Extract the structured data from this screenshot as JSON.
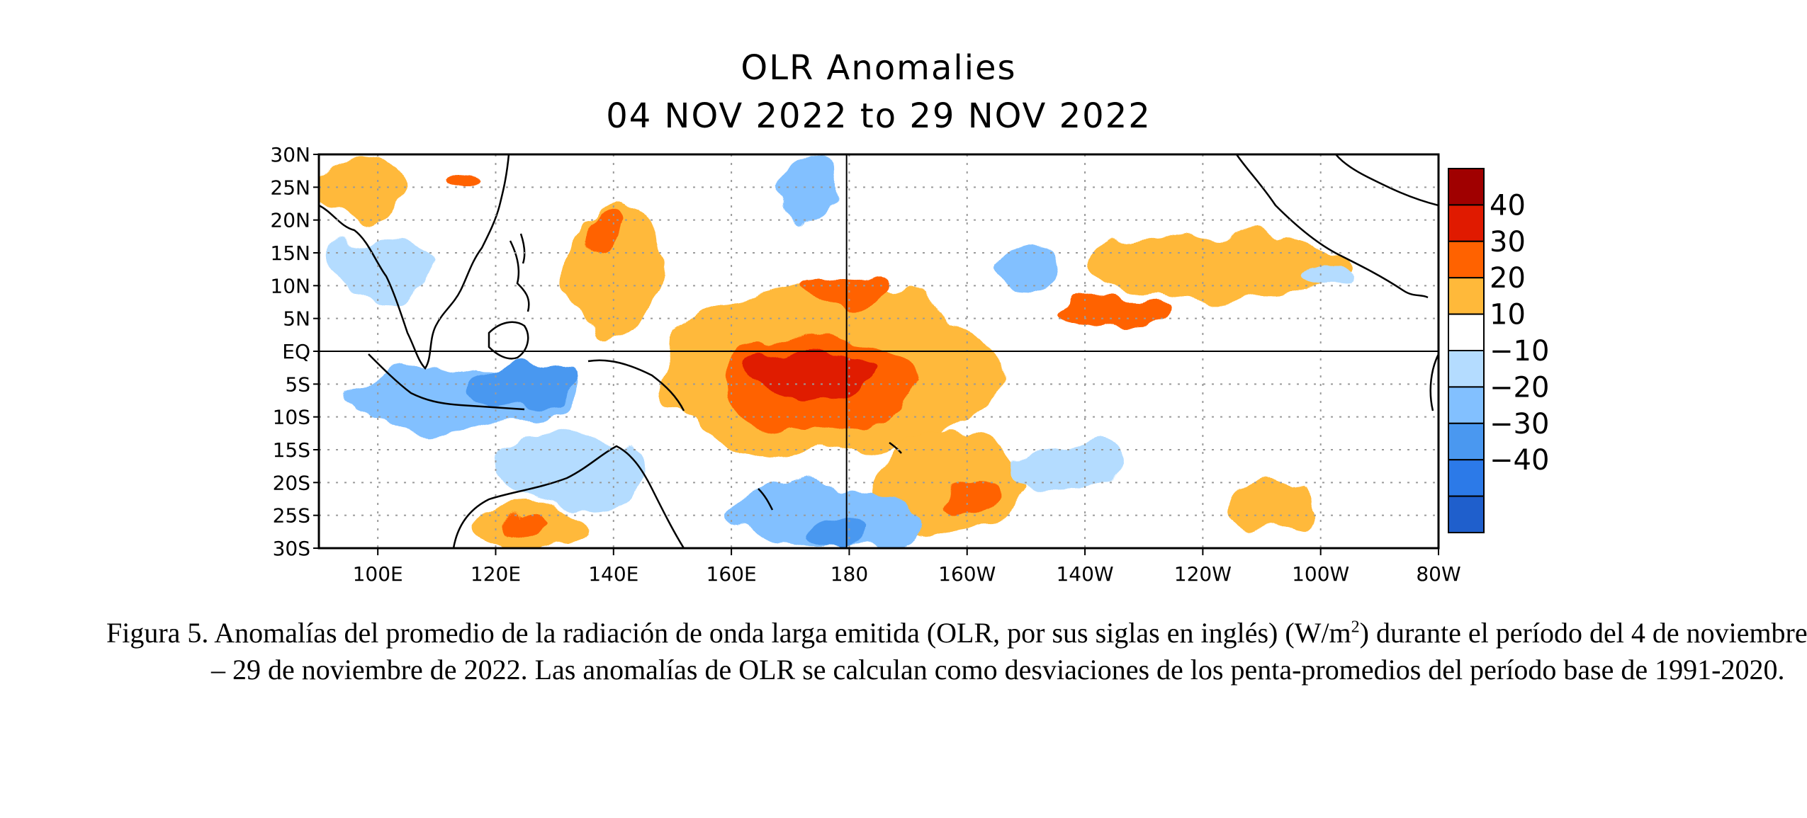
{
  "chart_data": {
    "type": "heatmap",
    "title": "OLR Anomalies",
    "subtitle": "04 NOV 2022 to 29 NOV 2022",
    "lon_range": [
      90,
      280
    ],
    "lat_range": [
      -30,
      30
    ],
    "x_ticks": [
      {
        "lon": 100,
        "label": "100E"
      },
      {
        "lon": 120,
        "label": "120E"
      },
      {
        "lon": 140,
        "label": "140E"
      },
      {
        "lon": 160,
        "label": "160E"
      },
      {
        "lon": 180,
        "label": "180"
      },
      {
        "lon": 200,
        "label": "160W"
      },
      {
        "lon": 220,
        "label": "140W"
      },
      {
        "lon": 240,
        "label": "120W"
      },
      {
        "lon": 260,
        "label": "100W"
      },
      {
        "lon": 280,
        "label": "80W"
      }
    ],
    "y_ticks": [
      {
        "lat": 30,
        "label": "30N"
      },
      {
        "lat": 25,
        "label": "25N"
      },
      {
        "lat": 20,
        "label": "20N"
      },
      {
        "lat": 15,
        "label": "15N"
      },
      {
        "lat": 10,
        "label": "10N"
      },
      {
        "lat": 5,
        "label": "5N"
      },
      {
        "lat": 0,
        "label": "EQ"
      },
      {
        "lat": -5,
        "label": "5S"
      },
      {
        "lat": -10,
        "label": "10S"
      },
      {
        "lat": -15,
        "label": "15S"
      },
      {
        "lat": -20,
        "label": "20S"
      },
      {
        "lat": -25,
        "label": "25S"
      },
      {
        "lat": -30,
        "label": "30S"
      }
    ],
    "grid": "dotted",
    "colorbar": {
      "placement": "right",
      "levels": [
        {
          "color": "#a00000",
          "min": 40,
          "max": null
        },
        {
          "color": "#e01a00",
          "min": 30,
          "max": 40
        },
        {
          "color": "#ff6200",
          "min": 20,
          "max": 30
        },
        {
          "color": "#ffb93a",
          "min": 10,
          "max": 20
        },
        {
          "color": "#ffffff",
          "min": -10,
          "max": 10
        },
        {
          "color": "#b4dcff",
          "min": -20,
          "max": -10
        },
        {
          "color": "#82c0ff",
          "min": -30,
          "max": -20
        },
        {
          "color": "#4a98f0",
          "min": -40,
          "max": -30
        },
        {
          "color": "#2c7ae8",
          "min": null,
          "max": -40
        },
        {
          "color": "#1f5fcc",
          "min": null,
          "max": -40
        }
      ],
      "labels": [
        "40",
        "30",
        "20",
        "10",
        "−10",
        "−20",
        "−30",
        "−40"
      ]
    },
    "anomaly_regions": [
      {
        "lon": [
          90,
          104
        ],
        "lat": [
          20,
          30
        ],
        "value": 15
      },
      {
        "lon": [
          113,
          117
        ],
        "lat": [
          24,
          27
        ],
        "value": 25
      },
      {
        "lon": [
          132,
          148
        ],
        "lat": [
          3,
          22
        ],
        "value": 15
      },
      {
        "lon": [
          135,
          142
        ],
        "lat": [
          16,
          21
        ],
        "value": 25
      },
      {
        "lon": [
          148,
          205
        ],
        "lat": [
          -16,
          10
        ],
        "value": 15
      },
      {
        "lon": [
          158,
          192
        ],
        "lat": [
          -12,
          2
        ],
        "value": 25
      },
      {
        "lon": [
          162,
          184
        ],
        "lat": [
          -7,
          0
        ],
        "value": 35
      },
      {
        "lon": [
          173,
          186
        ],
        "lat": [
          7,
          12
        ],
        "value": 25
      },
      {
        "lon": [
          185,
          210
        ],
        "lat": [
          -28,
          -12
        ],
        "value": 15
      },
      {
        "lon": [
          195,
          205
        ],
        "lat": [
          -25,
          -20
        ],
        "value": 25
      },
      {
        "lon": [
          215,
          235
        ],
        "lat": [
          4,
          8
        ],
        "value": 25
      },
      {
        "lon": [
          220,
          265
        ],
        "lat": [
          8,
          18
        ],
        "value": 15
      },
      {
        "lon": [
          244,
          260
        ],
        "lat": [
          -28,
          -20
        ],
        "value": 15
      },
      {
        "lon": [
          116,
          136
        ],
        "lat": [
          -30,
          -24
        ],
        "value": 15
      },
      {
        "lon": [
          121,
          129
        ],
        "lat": [
          -28,
          -26
        ],
        "value": 25
      },
      {
        "lon": [
          92,
          110
        ],
        "lat": [
          8,
          17
        ],
        "value": -20
      },
      {
        "lon": [
          95,
          133
        ],
        "lat": [
          -12,
          -2
        ],
        "value": -25
      },
      {
        "lon": [
          115,
          133
        ],
        "lat": [
          -9,
          -2
        ],
        "value": -40
      },
      {
        "lon": [
          120,
          145
        ],
        "lat": [
          -24,
          -12
        ],
        "value": -15
      },
      {
        "lon": [
          160,
          192
        ],
        "lat": [
          -30,
          -20
        ],
        "value": -25
      },
      {
        "lon": [
          172,
          184
        ],
        "lat": [
          -30,
          -25
        ],
        "value": -40
      },
      {
        "lon": [
          208,
          226
        ],
        "lat": [
          -22,
          -14
        ],
        "value": -20
      },
      {
        "lon": [
          205,
          215
        ],
        "lat": [
          10,
          16
        ],
        "value": -25
      },
      {
        "lon": [
          168,
          178
        ],
        "lat": [
          20,
          30
        ],
        "value": -25
      },
      {
        "lon": [
          258,
          266
        ],
        "lat": [
          10,
          13
        ],
        "value": -15
      }
    ]
  },
  "caption": {
    "label": "Figura 5.",
    "text_before_sup": "Anomalías del promedio de la radiación de onda larga emitida (OLR, por sus siglas en inglés) (W/m",
    "sup": "2",
    "text_after_sup": ") durante el período del 4 de noviembre – 29 de noviembre de 2022.  Las anomalías de OLR se calculan como desviaciones de los penta-promedios del período base de 1991-2020."
  }
}
